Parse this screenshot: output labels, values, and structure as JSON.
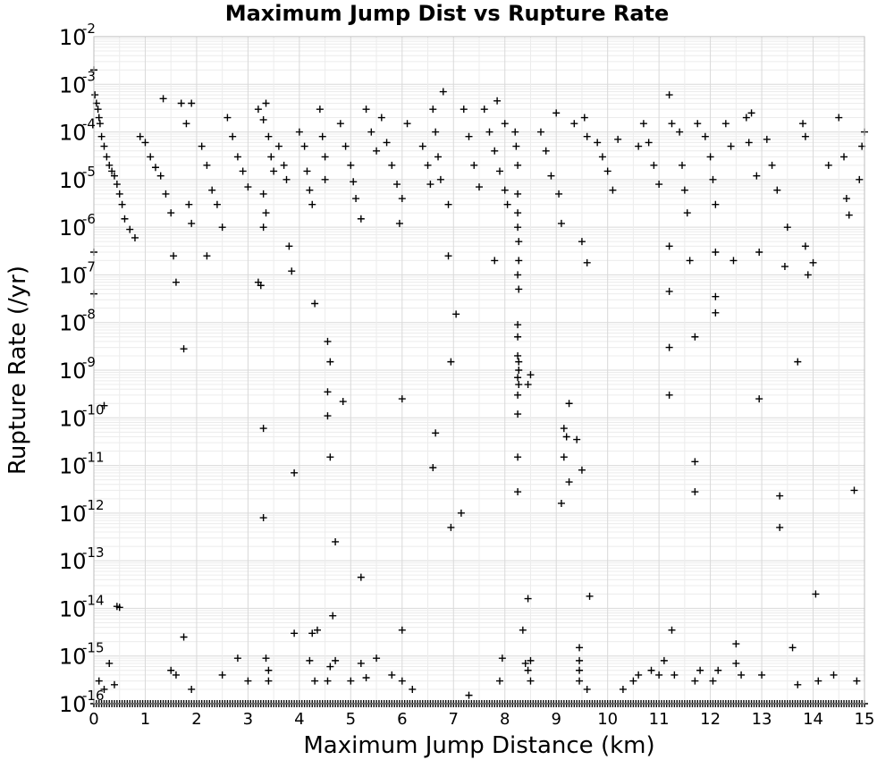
{
  "chart_data": {
    "type": "scatter",
    "title": "Maximum Jump Dist vs Rupture Rate",
    "xlabel": "Maximum Jump Distance (km)",
    "ylabel": "Rupture Rate (/yr)",
    "xlim": [
      0,
      15
    ],
    "ylim": [
      1e-16,
      0.01
    ],
    "y_scale": "log",
    "grid": true,
    "marker": "plus",
    "x_ticks": [
      "0",
      "1",
      "2",
      "3",
      "4",
      "5",
      "6",
      "7",
      "8",
      "9",
      "10",
      "11",
      "12",
      "13",
      "14",
      "15"
    ],
    "y_ticks": [
      {
        "mantissa": "10",
        "exponent": "-2"
      },
      {
        "mantissa": "10",
        "exponent": "-3"
      },
      {
        "mantissa": "10",
        "exponent": "-4"
      },
      {
        "mantissa": "10",
        "exponent": "-5"
      },
      {
        "mantissa": "10",
        "exponent": "-6"
      },
      {
        "mantissa": "10",
        "exponent": "-7"
      },
      {
        "mantissa": "10",
        "exponent": "-8"
      },
      {
        "mantissa": "10",
        "exponent": "-9"
      },
      {
        "mantissa": "10",
        "exponent": "-10"
      },
      {
        "mantissa": "10",
        "exponent": "-11"
      },
      {
        "mantissa": "10",
        "exponent": "-12"
      },
      {
        "mantissa": "10",
        "exponent": "-13"
      },
      {
        "mantissa": "10",
        "exponent": "-14"
      },
      {
        "mantissa": "10",
        "exponent": "-15"
      },
      {
        "mantissa": "10",
        "exponent": "-16"
      }
    ],
    "points": [
      [
        0.0,
        0.002
      ],
      [
        0.02,
        0.0006
      ],
      [
        0.05,
        0.0004
      ],
      [
        0.08,
        0.0003
      ],
      [
        0.1,
        0.0002
      ],
      [
        0.12,
        0.00015
      ],
      [
        0.15,
        8e-05
      ],
      [
        0.2,
        5e-05
      ],
      [
        0.25,
        3e-05
      ],
      [
        0.3,
        2e-05
      ],
      [
        0.35,
        1.5e-05
      ],
      [
        0.4,
        1.2e-05
      ],
      [
        0.45,
        8e-06
      ],
      [
        0.5,
        5e-06
      ],
      [
        0.55,
        3e-06
      ],
      [
        0.6,
        1.5e-06
      ],
      [
        0.7,
        9e-07
      ],
      [
        0.8,
        6e-07
      ],
      [
        0.0,
        3e-07
      ],
      [
        0.0,
        4e-08
      ],
      [
        0.2,
        1.8e-10
      ],
      [
        0.45,
        1.1e-14
      ],
      [
        0.5,
        1.05e-14
      ],
      [
        0.3,
        7e-16
      ],
      [
        0.1,
        3e-16
      ],
      [
        0.2,
        2e-16
      ],
      [
        0.4,
        2.5e-16
      ],
      [
        0.9,
        8e-05
      ],
      [
        1.0,
        6e-05
      ],
      [
        1.1,
        3e-05
      ],
      [
        1.2,
        1.8e-05
      ],
      [
        1.3,
        1.2e-05
      ],
      [
        1.35,
        0.0005
      ],
      [
        1.4,
        5e-06
      ],
      [
        1.5,
        2e-06
      ],
      [
        1.55,
        2.5e-07
      ],
      [
        1.6,
        7e-08
      ],
      [
        1.7,
        0.0004
      ],
      [
        1.8,
        0.00015
      ],
      [
        1.85,
        3e-06
      ],
      [
        1.9,
        1.2e-06
      ],
      [
        1.9,
        0.0004
      ],
      [
        1.75,
        2.8e-09
      ],
      [
        1.75,
        2.5e-15
      ],
      [
        1.5,
        5e-16
      ],
      [
        1.6,
        4e-16
      ],
      [
        1.9,
        2e-16
      ],
      [
        2.1,
        5e-05
      ],
      [
        2.2,
        2e-05
      ],
      [
        2.3,
        6e-06
      ],
      [
        2.4,
        3e-06
      ],
      [
        2.5,
        1e-06
      ],
      [
        2.6,
        0.0002
      ],
      [
        2.7,
        8e-05
      ],
      [
        2.8,
        3e-05
      ],
      [
        2.9,
        1.5e-05
      ],
      [
        3.0,
        7e-06
      ],
      [
        2.2,
        2.5e-07
      ],
      [
        2.5,
        4e-16
      ],
      [
        2.8,
        9e-16
      ],
      [
        3.0,
        3e-16
      ],
      [
        3.2,
        0.0003
      ],
      [
        3.3,
        0.00018
      ],
      [
        3.35,
        0.0004
      ],
      [
        3.4,
        8e-05
      ],
      [
        3.45,
        3e-05
      ],
      [
        3.5,
        1.5e-05
      ],
      [
        3.3,
        5e-06
      ],
      [
        3.35,
        2e-06
      ],
      [
        3.2,
        7e-08
      ],
      [
        3.25,
        6e-08
      ],
      [
        3.3,
        1e-06
      ],
      [
        3.3,
        6e-11
      ],
      [
        3.3,
        8e-13
      ],
      [
        3.35,
        9e-16
      ],
      [
        3.4,
        5e-16
      ],
      [
        3.4,
        3e-16
      ],
      [
        3.6,
        5e-05
      ],
      [
        3.7,
        2e-05
      ],
      [
        3.75,
        1e-05
      ],
      [
        3.8,
        4e-07
      ],
      [
        3.85,
        1.2e-07
      ],
      [
        3.9,
        7e-12
      ],
      [
        3.9,
        3e-15
      ],
      [
        4.0,
        0.0001
      ],
      [
        4.1,
        5e-05
      ],
      [
        4.15,
        1.5e-05
      ],
      [
        4.2,
        6e-06
      ],
      [
        4.25,
        3e-06
      ],
      [
        4.3,
        2.5e-08
      ],
      [
        4.25,
        3e-15
      ],
      [
        4.35,
        3.5e-15
      ],
      [
        4.2,
        8e-16
      ],
      [
        4.3,
        3e-16
      ],
      [
        4.4,
        0.0003
      ],
      [
        4.45,
        8e-05
      ],
      [
        4.5,
        3e-05
      ],
      [
        4.5,
        1e-05
      ],
      [
        4.55,
        4e-09
      ],
      [
        4.55,
        3.5e-10
      ],
      [
        4.55,
        1.1e-10
      ],
      [
        4.6,
        1.5e-09
      ],
      [
        4.6,
        1.5e-11
      ],
      [
        4.7,
        2.5e-13
      ],
      [
        4.65,
        7e-15
      ],
      [
        4.7,
        8e-16
      ],
      [
        4.6,
        6e-16
      ],
      [
        4.55,
        3e-16
      ],
      [
        4.8,
        0.00015
      ],
      [
        4.9,
        5e-05
      ],
      [
        5.0,
        2e-05
      ],
      [
        5.05,
        9e-06
      ],
      [
        5.1,
        4e-06
      ],
      [
        5.2,
        1.5e-06
      ],
      [
        4.85,
        2.2e-10
      ],
      [
        5.2,
        4.5e-14
      ],
      [
        5.3,
        0.0003
      ],
      [
        5.4,
        0.0001
      ],
      [
        5.5,
        4e-05
      ],
      [
        5.5,
        9e-16
      ],
      [
        5.2,
        7e-16
      ],
      [
        5.0,
        3e-16
      ],
      [
        5.3,
        3.5e-16
      ],
      [
        5.6,
        0.0002
      ],
      [
        5.7,
        6e-05
      ],
      [
        5.8,
        2e-05
      ],
      [
        5.9,
        8e-06
      ],
      [
        6.0,
        4e-06
      ],
      [
        5.95,
        1.2e-06
      ],
      [
        6.0,
        2.5e-10
      ],
      [
        6.0,
        3.5e-15
      ],
      [
        6.1,
        0.00015
      ],
      [
        5.8,
        4e-16
      ],
      [
        6.0,
        3e-16
      ],
      [
        6.2,
        2e-16
      ],
      [
        6.4,
        5e-05
      ],
      [
        6.5,
        2e-05
      ],
      [
        6.55,
        8e-06
      ],
      [
        6.6,
        0.0003
      ],
      [
        6.65,
        0.0001
      ],
      [
        6.7,
        3e-05
      ],
      [
        6.75,
        1e-05
      ],
      [
        6.6,
        9e-12
      ],
      [
        6.65,
        4.8e-11
      ],
      [
        6.8,
        0.0007
      ],
      [
        6.9,
        3e-06
      ],
      [
        6.95,
        1.5e-09
      ],
      [
        6.95,
        5e-13
      ],
      [
        7.05,
        1.5e-08
      ],
      [
        7.15,
        1e-12
      ],
      [
        6.9,
        2.5e-07
      ],
      [
        7.2,
        0.0003
      ],
      [
        7.3,
        8e-05
      ],
      [
        7.4,
        2e-05
      ],
      [
        7.5,
        7e-06
      ],
      [
        7.3,
        1.5e-16
      ],
      [
        7.6,
        0.0003
      ],
      [
        7.7,
        0.0001
      ],
      [
        7.8,
        4e-05
      ],
      [
        7.9,
        1.5e-05
      ],
      [
        8.0,
        6e-06
      ],
      [
        8.05,
        3e-06
      ],
      [
        7.85,
        0.00045
      ],
      [
        8.0,
        0.00015
      ],
      [
        7.8,
        2e-07
      ],
      [
        7.95,
        9e-16
      ],
      [
        7.9,
        3e-16
      ],
      [
        8.2,
        0.0001
      ],
      [
        8.22,
        5e-05
      ],
      [
        8.25,
        2e-05
      ],
      [
        8.25,
        5e-06
      ],
      [
        8.25,
        2e-06
      ],
      [
        8.25,
        1e-06
      ],
      [
        8.27,
        5e-07
      ],
      [
        8.27,
        2e-07
      ],
      [
        8.25,
        1e-07
      ],
      [
        8.27,
        5e-08
      ],
      [
        8.25,
        9e-09
      ],
      [
        8.25,
        5e-09
      ],
      [
        8.25,
        2e-09
      ],
      [
        8.27,
        1.5e-09
      ],
      [
        8.27,
        1e-09
      ],
      [
        8.25,
        7e-10
      ],
      [
        8.27,
        5e-10
      ],
      [
        8.25,
        3e-10
      ],
      [
        8.25,
        1.2e-10
      ],
      [
        8.25,
        1.5e-11
      ],
      [
        8.25,
        2.8e-12
      ],
      [
        8.35,
        3.5e-15
      ],
      [
        8.4,
        7e-16
      ],
      [
        8.45,
        5e-16
      ],
      [
        8.5,
        8e-10
      ],
      [
        8.45,
        5e-10
      ],
      [
        8.45,
        1.6e-14
      ],
      [
        8.5,
        8e-16
      ],
      [
        8.5,
        3e-16
      ],
      [
        8.7,
        0.0001
      ],
      [
        8.8,
        4e-05
      ],
      [
        8.9,
        1.2e-05
      ],
      [
        9.0,
        0.00025
      ],
      [
        9.05,
        5e-06
      ],
      [
        9.1,
        1.2e-06
      ],
      [
        9.15,
        6e-11
      ],
      [
        9.2,
        4e-11
      ],
      [
        9.15,
        1.5e-11
      ],
      [
        9.1,
        1.6e-12
      ],
      [
        9.25,
        4.5e-12
      ],
      [
        9.25,
        2e-10
      ],
      [
        9.35,
        0.00015
      ],
      [
        9.4,
        3.5e-11
      ],
      [
        9.45,
        1.5e-15
      ],
      [
        9.45,
        8e-16
      ],
      [
        9.45,
        5e-16
      ],
      [
        9.45,
        3e-16
      ],
      [
        9.5,
        8e-12
      ],
      [
        9.5,
        5e-07
      ],
      [
        9.6,
        1.8e-07
      ],
      [
        9.55,
        0.0002
      ],
      [
        9.6,
        8e-05
      ],
      [
        9.65,
        1.8e-14
      ],
      [
        9.6,
        2e-16
      ],
      [
        9.8,
        6e-05
      ],
      [
        9.9,
        3e-05
      ],
      [
        10.0,
        1.5e-05
      ],
      [
        10.1,
        6e-06
      ],
      [
        10.2,
        7e-05
      ],
      [
        10.3,
        2e-16
      ],
      [
        10.5,
        3e-16
      ],
      [
        10.6,
        5e-05
      ],
      [
        10.7,
        0.00015
      ],
      [
        10.8,
        6e-05
      ],
      [
        10.9,
        2e-05
      ],
      [
        11.0,
        8e-06
      ],
      [
        11.0,
        4e-16
      ],
      [
        10.85,
        5e-16
      ],
      [
        10.6,
        4e-16
      ],
      [
        11.2,
        0.0006
      ],
      [
        11.25,
        0.00015
      ],
      [
        11.2,
        4e-07
      ],
      [
        11.2,
        4.5e-08
      ],
      [
        11.2,
        3e-09
      ],
      [
        11.2,
        3e-10
      ],
      [
        11.25,
        3.5e-15
      ],
      [
        11.1,
        8e-16
      ],
      [
        11.3,
        4e-16
      ],
      [
        11.4,
        0.0001
      ],
      [
        11.45,
        2e-05
      ],
      [
        11.5,
        6e-06
      ],
      [
        11.55,
        2e-06
      ],
      [
        11.6,
        2e-07
      ],
      [
        11.7,
        1.2e-11
      ],
      [
        11.7,
        2.8e-12
      ],
      [
        11.7,
        5e-09
      ],
      [
        11.75,
        0.00015
      ],
      [
        11.8,
        5e-16
      ],
      [
        11.7,
        3e-16
      ],
      [
        11.9,
        8e-05
      ],
      [
        12.0,
        3e-05
      ],
      [
        12.05,
        1e-05
      ],
      [
        12.1,
        3e-06
      ],
      [
        12.1,
        3e-07
      ],
      [
        12.1,
        3.5e-08
      ],
      [
        12.1,
        1.6e-08
      ],
      [
        12.15,
        5e-16
      ],
      [
        12.05,
        3e-16
      ],
      [
        12.3,
        0.00015
      ],
      [
        12.4,
        5e-05
      ],
      [
        12.45,
        2e-07
      ],
      [
        12.5,
        1.8e-15
      ],
      [
        12.5,
        7e-16
      ],
      [
        12.6,
        4e-16
      ],
      [
        12.7,
        0.0002
      ],
      [
        12.75,
        6e-05
      ],
      [
        12.8,
        0.00025
      ],
      [
        12.9,
        1.2e-05
      ],
      [
        12.95,
        2.5e-10
      ],
      [
        12.95,
        3e-07
      ],
      [
        13.0,
        4e-16
      ],
      [
        13.1,
        7e-05
      ],
      [
        13.2,
        2e-05
      ],
      [
        13.3,
        6e-06
      ],
      [
        13.35,
        2.3e-12
      ],
      [
        13.35,
        5e-13
      ],
      [
        13.45,
        1.5e-07
      ],
      [
        13.5,
        1e-06
      ],
      [
        13.6,
        1.5e-15
      ],
      [
        13.7,
        1.5e-09
      ],
      [
        13.7,
        2.5e-16
      ],
      [
        13.8,
        0.00015
      ],
      [
        13.85,
        8e-05
      ],
      [
        13.9,
        1e-16
      ],
      [
        13.85,
        4e-07
      ],
      [
        13.9,
        1e-07
      ],
      [
        14.0,
        1.8e-07
      ],
      [
        14.05,
        2e-14
      ],
      [
        14.1,
        3e-16
      ],
      [
        14.3,
        2e-05
      ],
      [
        14.4,
        4e-16
      ],
      [
        14.5,
        0.0002
      ],
      [
        14.6,
        3e-05
      ],
      [
        14.65,
        4e-06
      ],
      [
        14.7,
        1.8e-06
      ],
      [
        14.8,
        3e-12
      ],
      [
        14.85,
        3e-16
      ],
      [
        14.9,
        1e-05
      ],
      [
        14.95,
        5e-05
      ],
      [
        15.0,
        0.0001
      ]
    ],
    "baseline_points": {
      "y": 1e-16,
      "x_from": 0,
      "x_to": 15,
      "x_step": 0.05
    }
  }
}
